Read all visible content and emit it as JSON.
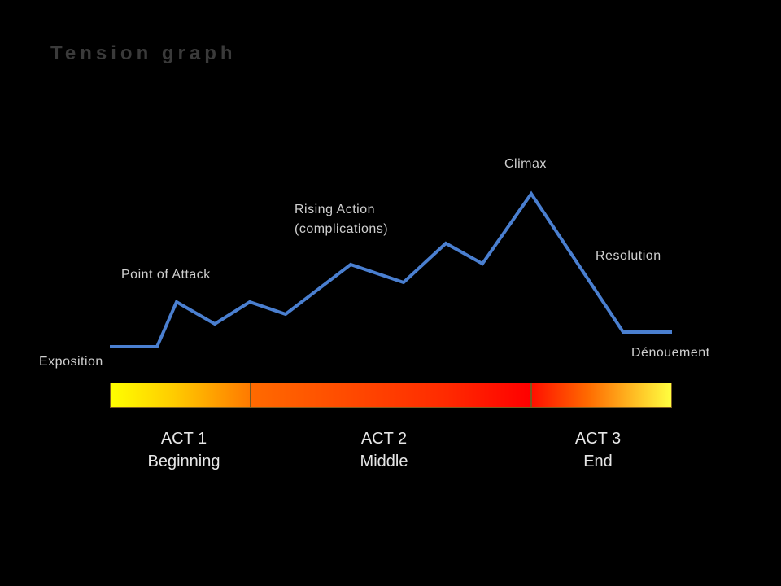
{
  "title": "Tension graph",
  "labels": {
    "exposition": "Exposition",
    "point_of_attack": "Point of Attack",
    "rising_action_1": "Rising Action",
    "rising_action_2": "(complications)",
    "climax": "Climax",
    "resolution": "Resolution",
    "denouement": "Dénouement"
  },
  "acts": [
    {
      "num": "ACT 1",
      "name": "Beginning"
    },
    {
      "num": "ACT 2",
      "name": "Middle"
    },
    {
      "num": "ACT 3",
      "name": "End"
    }
  ],
  "colors": {
    "line": "#4a7fd0",
    "background": "#000000",
    "bar_yellow": "#ffff00",
    "bar_red": "#ff0000"
  }
}
